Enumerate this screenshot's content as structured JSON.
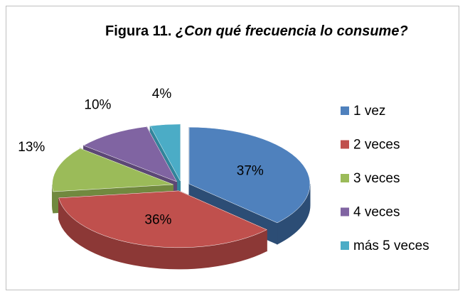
{
  "chart_data": {
    "type": "pie3d",
    "title_label": "Figura 11.",
    "title": "¿Con qué frecuencia lo consume?",
    "categories": [
      "1 vez",
      "2 veces",
      "3 veces",
      "4 veces",
      "más 5 veces"
    ],
    "values": [
      37,
      36,
      13,
      10,
      4
    ],
    "value_labels": [
      "37%",
      "36%",
      "13%",
      "10%",
      "4%"
    ],
    "colors": [
      "#4f81bd",
      "#c0504d",
      "#9bbb59",
      "#8064a2",
      "#4bacc6"
    ],
    "side_colors": [
      "#2c4d75",
      "#8c3836",
      "#71893f",
      "#5c4776",
      "#31859b"
    ],
    "legend": "right"
  }
}
